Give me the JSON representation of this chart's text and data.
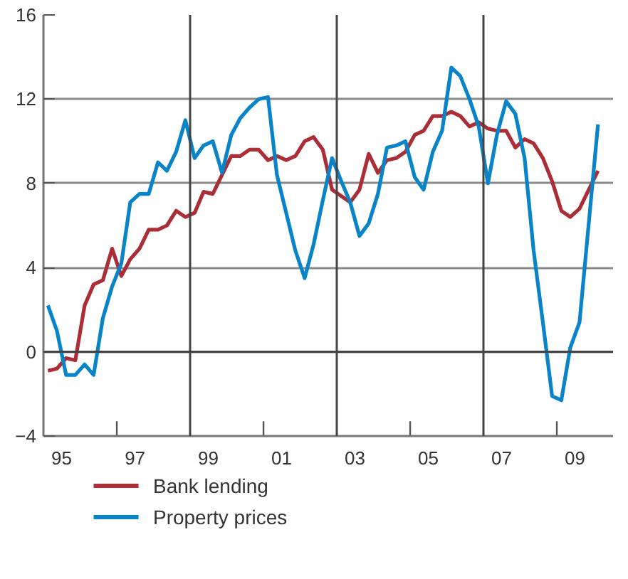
{
  "chart_data": {
    "type": "line",
    "x": [
      "1995-02-15",
      "1995-05-15",
      "1995-08-15",
      "1995-11-15",
      "1996-02-15",
      "1996-05-15",
      "1996-08-15",
      "1996-11-15",
      "1997-02-15",
      "1997-05-15",
      "1997-08-15",
      "1997-11-15",
      "1998-02-15",
      "1998-05-15",
      "1998-08-15",
      "1998-11-15",
      "1999-02-15",
      "1999-05-15",
      "1999-08-15",
      "1999-11-15",
      "2000-02-15",
      "2000-05-15",
      "2000-08-15",
      "2000-11-15",
      "2001-02-15",
      "2001-05-15",
      "2001-08-15",
      "2001-11-15",
      "2002-02-15",
      "2002-05-15",
      "2002-08-15",
      "2002-11-15",
      "2003-02-15",
      "2003-05-15",
      "2003-08-15",
      "2003-11-15",
      "2004-02-15",
      "2004-05-15",
      "2004-08-15",
      "2004-11-15",
      "2005-02-15",
      "2005-05-15",
      "2005-08-15",
      "2005-11-15",
      "2006-02-15",
      "2006-05-15",
      "2006-08-15",
      "2006-11-15",
      "2007-02-15",
      "2007-05-15",
      "2007-08-15",
      "2007-11-15",
      "2008-02-15",
      "2008-05-15",
      "2008-08-15",
      "2008-11-15",
      "2009-02-15",
      "2009-05-15",
      "2009-08-15",
      "2009-11-15",
      "2010-02-15"
    ],
    "series": [
      {
        "name": "Bank lending",
        "color": "#ab2e37",
        "values": [
          -0.9,
          -0.8,
          -0.3,
          -0.4,
          2.2,
          3.2,
          3.4,
          4.9,
          3.6,
          4.4,
          4.9,
          5.8,
          5.8,
          6.0,
          6.7,
          6.4,
          6.6,
          7.6,
          7.5,
          8.4,
          9.3,
          9.3,
          9.6,
          9.6,
          9.1,
          9.3,
          9.1,
          9.3,
          10.0,
          10.2,
          9.6,
          7.7,
          7.4,
          7.1,
          7.7,
          9.4,
          8.5,
          9.1,
          9.2,
          9.5,
          10.3,
          10.5,
          11.2,
          11.2,
          11.4,
          11.2,
          10.7,
          10.9,
          10.6,
          10.5,
          10.5,
          9.7,
          10.1,
          9.9,
          9.2,
          8.1,
          6.7,
          6.4,
          6.8,
          7.7,
          8.6
        ]
      },
      {
        "name": "Property prices",
        "color": "#0a84c9",
        "values": [
          2.2,
          1.0,
          -1.1,
          -1.1,
          -0.6,
          -1.1,
          1.6,
          3.1,
          4.2,
          7.1,
          7.5,
          7.5,
          9.0,
          8.6,
          9.5,
          11.0,
          9.2,
          9.8,
          10.0,
          8.5,
          10.3,
          11.1,
          11.6,
          12.0,
          12.1,
          8.4,
          6.6,
          4.8,
          3.5,
          5.1,
          7.2,
          9.2,
          8.1,
          7.1,
          5.5,
          6.1,
          7.5,
          9.7,
          9.8,
          10.0,
          8.3,
          7.7,
          9.5,
          10.5,
          13.5,
          13.1,
          12.0,
          10.7,
          8.0,
          10.3,
          11.9,
          11.3,
          9.2,
          4.8,
          1.4,
          -2.1,
          -2.3,
          0.2,
          1.4,
          6.1,
          10.8
        ]
      }
    ],
    "xlim": [
      "1995-01-01",
      "2010-07-15"
    ],
    "xticks": [
      {
        "value": "1995-07-01",
        "label": "95"
      },
      {
        "value": "1997-07-01",
        "label": "97"
      },
      {
        "value": "1999-07-01",
        "label": "99"
      },
      {
        "value": "2001-07-01",
        "label": "01"
      },
      {
        "value": "2003-07-01",
        "label": "03"
      },
      {
        "value": "2005-07-01",
        "label": "05"
      },
      {
        "value": "2007-07-01",
        "label": "07"
      },
      {
        "value": "2009-07-01",
        "label": "09"
      },
      {
        "value": "1997-01-01",
        "label": null
      },
      {
        "value": "2001-01-01",
        "label": null
      },
      {
        "value": "2005-01-01",
        "label": null
      },
      {
        "value": "2009-01-01",
        "label": null
      }
    ],
    "ylim": [
      -4,
      16
    ],
    "yticks": [
      -4,
      0,
      4,
      8,
      12,
      16
    ],
    "grid": "y",
    "ref_lines": [
      {
        "axis": "x",
        "value": "1999-01-01",
        "color": "#444444"
      },
      {
        "axis": "x",
        "value": "2003-01-01",
        "color": "#444444"
      },
      {
        "axis": "x",
        "value": "2007-01-01",
        "color": "#444444"
      },
      {
        "axis": "y",
        "value": 0,
        "color": "#444444"
      }
    ],
    "legend": "bottom",
    "marker": "none",
    "line_style": "solid"
  }
}
